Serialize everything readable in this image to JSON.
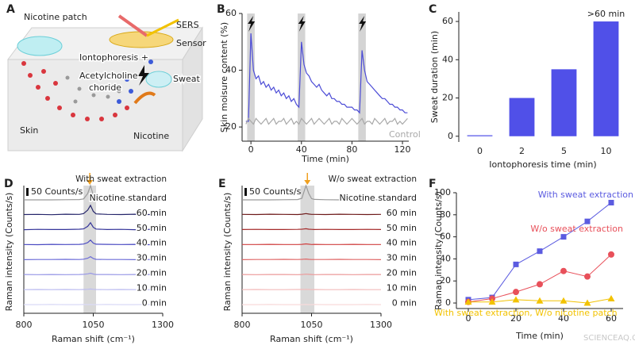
{
  "diagram": {
    "panel": "A",
    "patch": "Nicotine patch",
    "sers": "SERS",
    "sensor": "Sensor",
    "iontophoresis": "Iontophoresis +",
    "acetylcholine": [
      "Acetylcholine",
      "choride"
    ],
    "sweat": "Sweat",
    "skin": "Skin",
    "nicotine": "Nicotine"
  },
  "chart_data": [
    {
      "type": "line",
      "panel": "B",
      "x_label": "Time (min)",
      "y_label": "Skin moisure content (%)",
      "xlim": [
        -7,
        125
      ],
      "ylim": [
        15,
        60
      ],
      "xticks": [
        0,
        40,
        80,
        120
      ],
      "yticks": [
        20,
        40,
        60
      ],
      "shaded": [
        [
          -3,
          3
        ],
        [
          37,
          43
        ],
        [
          85,
          91
        ]
      ],
      "x": [
        -4,
        -2,
        0,
        2,
        4,
        6,
        8,
        10,
        12,
        14,
        16,
        18,
        20,
        22,
        24,
        26,
        28,
        30,
        32,
        34,
        36,
        38,
        40,
        42,
        44,
        46,
        48,
        50,
        52,
        54,
        56,
        58,
        60,
        62,
        64,
        66,
        68,
        70,
        72,
        74,
        76,
        78,
        80,
        82,
        84,
        86,
        88,
        90,
        92,
        94,
        96,
        98,
        100,
        102,
        104,
        106,
        108,
        110,
        112,
        114,
        116,
        118,
        120,
        122,
        124
      ],
      "series": [
        {
          "color": "#4b4bd6",
          "values": [
            22,
            22,
            53,
            40,
            37,
            38,
            35,
            36,
            34,
            35,
            33,
            34,
            32,
            33,
            31,
            32,
            30,
            31,
            29,
            30,
            28,
            27,
            50,
            42,
            39,
            38,
            36,
            35,
            34,
            35,
            33,
            32,
            31,
            32,
            30,
            30,
            29,
            29,
            28,
            28,
            27,
            27,
            27,
            26,
            26,
            25,
            47,
            40,
            36,
            35,
            34,
            33,
            32,
            31,
            30,
            30,
            29,
            28,
            28,
            27,
            27,
            26,
            26,
            25,
            25
          ]
        },
        {
          "name": "Control",
          "color": "#a8a8a8",
          "values": [
            21,
            23,
            22,
            21,
            23,
            22,
            21,
            22,
            23,
            21,
            22,
            23,
            21,
            22,
            22,
            23,
            21,
            22,
            23,
            21,
            22,
            21,
            23,
            22,
            21,
            22,
            23,
            21,
            22,
            23,
            22,
            21,
            22,
            23,
            21,
            22,
            22,
            21,
            23,
            22,
            21,
            22,
            23,
            22,
            21,
            22,
            23,
            21,
            22,
            22,
            21,
            23,
            22,
            21,
            22,
            23,
            21,
            22,
            22,
            23,
            21,
            22,
            21,
            22,
            23
          ]
        }
      ]
    },
    {
      "type": "bar",
      "panel": "C",
      "x_label": "Iontophoresis time (min)",
      "y_label": "Sweat duration (min)",
      "categories": [
        "0",
        "2",
        "5",
        "10"
      ],
      "values": [
        0.5,
        20,
        35,
        60
      ],
      "color": "#5050e8",
      "annotation": ">60 min",
      "ylim": [
        -3,
        65
      ],
      "yticks": [
        0,
        20,
        40,
        60
      ]
    },
    {
      "type": "spectra",
      "panel": "D",
      "title": "With sweat extraction",
      "x_label": "Raman shift (cm⁻¹)",
      "y_label": "Raman intensity (Counts/s)",
      "scale_bar": {
        "value": 50,
        "label": "50 Counts/s"
      },
      "xlim": [
        800,
        1300
      ],
      "xticks": [
        800,
        1050,
        1300
      ],
      "shaded": [
        1015,
        1060
      ],
      "x": [
        800,
        850,
        900,
        950,
        1000,
        1015,
        1030,
        1040,
        1050,
        1060,
        1100,
        1150,
        1200,
        1250,
        1300
      ],
      "series": [
        {
          "name": "Nicotine standard",
          "color": "#9a9a9a",
          "values": [
            0,
            0,
            0,
            1,
            2,
            6,
            40,
            90,
            30,
            5,
            1,
            0,
            0,
            0,
            0
          ]
        },
        {
          "name": "60 min",
          "color": "#25256a",
          "values": [
            2,
            3,
            1,
            4,
            3,
            8,
            30,
            60,
            22,
            6,
            3,
            2,
            4,
            2,
            3
          ]
        },
        {
          "name": "50 min",
          "color": "#35359a",
          "values": [
            1,
            3,
            2,
            2,
            4,
            6,
            22,
            45,
            16,
            5,
            2,
            3,
            1,
            3,
            2
          ]
        },
        {
          "name": "40 min",
          "color": "#4a4ac2",
          "values": [
            2,
            1,
            3,
            2,
            3,
            5,
            14,
            30,
            11,
            4,
            3,
            2,
            3,
            1,
            2
          ]
        },
        {
          "name": "30 min",
          "color": "#6d6dd8",
          "values": [
            1,
            2,
            2,
            3,
            2,
            4,
            10,
            20,
            8,
            3,
            2,
            2,
            1,
            2,
            2
          ]
        },
        {
          "name": "20 min",
          "color": "#9898e6",
          "values": [
            2,
            1,
            2,
            1,
            2,
            3,
            6,
            10,
            5,
            2,
            2,
            1,
            2,
            2,
            1
          ]
        },
        {
          "name": "10 min",
          "color": "#bcbcf0",
          "values": [
            1,
            2,
            1,
            2,
            1,
            2,
            3,
            5,
            3,
            2,
            1,
            2,
            1,
            1,
            2
          ]
        },
        {
          "name": "0 min",
          "color": "#dadaf6",
          "values": [
            1,
            1,
            2,
            1,
            1,
            2,
            1,
            2,
            1,
            1,
            2,
            1,
            1,
            2,
            1
          ]
        }
      ]
    },
    {
      "type": "spectra",
      "panel": "E",
      "title": "W/o sweat extraction",
      "x_label": "Raman shift (cm⁻¹)",
      "y_label": "Raman intensity (Counts/s)",
      "scale_bar": {
        "value": 50,
        "label": "50 Counts/s"
      },
      "xlim": [
        800,
        1300
      ],
      "xticks": [
        800,
        1050,
        1300
      ],
      "shaded": [
        1010,
        1060
      ],
      "x": [
        800,
        850,
        900,
        950,
        1000,
        1015,
        1030,
        1040,
        1050,
        1060,
        1100,
        1150,
        1200,
        1250,
        1300
      ],
      "series": [
        {
          "name": "Nicotine standard",
          "color": "#9a9a9a",
          "values": [
            0,
            0,
            0,
            1,
            2,
            10,
            90,
            40,
            8,
            3,
            1,
            0,
            0,
            0,
            0
          ]
        },
        {
          "name": "60 min",
          "color": "#6e1a1a",
          "values": [
            3,
            2,
            4,
            3,
            2,
            4,
            8,
            5,
            3,
            3,
            2,
            4,
            3,
            2,
            3
          ]
        },
        {
          "name": "50 min",
          "color": "#a52a2a",
          "values": [
            2,
            3,
            2,
            2,
            3,
            4,
            7,
            4,
            3,
            2,
            3,
            2,
            2,
            3,
            2
          ]
        },
        {
          "name": "40 min",
          "color": "#d04040",
          "values": [
            2,
            2,
            3,
            2,
            2,
            3,
            6,
            4,
            2,
            3,
            2,
            2,
            3,
            2,
            2
          ]
        },
        {
          "name": "30 min",
          "color": "#e06868",
          "values": [
            1,
            2,
            2,
            3,
            2,
            3,
            5,
            3,
            2,
            2,
            2,
            3,
            2,
            2,
            1
          ]
        },
        {
          "name": "20 min",
          "color": "#ec9a9a",
          "values": [
            2,
            1,
            2,
            2,
            1,
            2,
            4,
            3,
            2,
            1,
            2,
            2,
            1,
            2,
            2
          ]
        },
        {
          "name": "10 min",
          "color": "#f3bcbc",
          "values": [
            1,
            2,
            1,
            1,
            2,
            2,
            3,
            2,
            1,
            2,
            1,
            1,
            2,
            1,
            1
          ]
        },
        {
          "name": "0 min",
          "color": "#f8dada",
          "values": [
            1,
            1,
            2,
            1,
            1,
            1,
            2,
            1,
            1,
            2,
            1,
            1,
            1,
            2,
            1
          ]
        }
      ]
    },
    {
      "type": "line",
      "panel": "F",
      "x_label": "Time (min)",
      "y_label": "Raman intensity (Counts/s)",
      "xlim": [
        -5,
        65
      ],
      "ylim": [
        -5,
        100
      ],
      "xticks": [
        0,
        20,
        40,
        60
      ],
      "yticks": [
        0,
        20,
        40,
        60,
        80,
        100
      ],
      "x": [
        0,
        10,
        20,
        30,
        40,
        50,
        60
      ],
      "series": [
        {
          "name": "With sweat extraction",
          "color": "#5b5be0",
          "marker": "square",
          "values": [
            3,
            5,
            35,
            47,
            60,
            74,
            91
          ]
        },
        {
          "name": "W/o sweat extraction",
          "color": "#e8505a",
          "marker": "circle",
          "values": [
            1,
            4,
            10,
            17,
            29,
            24,
            44
          ]
        },
        {
          "name": "With sweat extraction, W/o nicotine patch",
          "color": "#f2c200",
          "marker": "triangle",
          "values": [
            1,
            1,
            3,
            2,
            2,
            0,
            4
          ]
        }
      ]
    }
  ],
  "watermark": "SCIENCEAQ.COM"
}
